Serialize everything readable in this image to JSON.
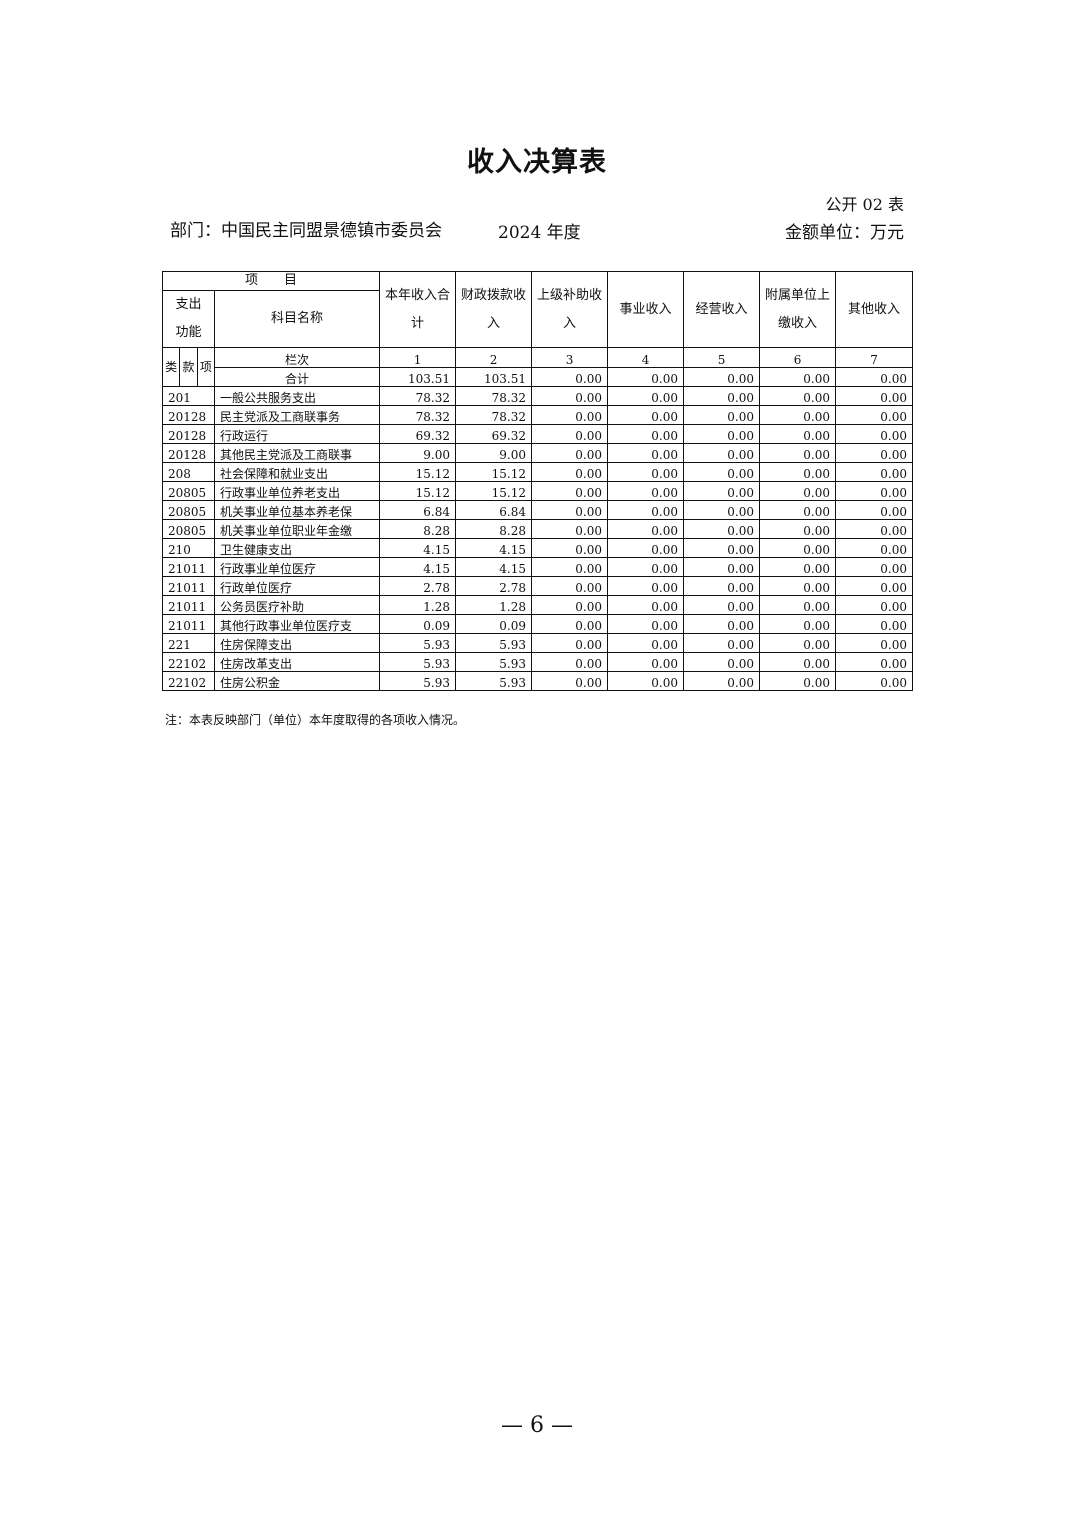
{
  "title": "收入决算表",
  "form_code": "公开 02 表",
  "department": "部门：中国民主同盟景德镇市委员会",
  "year": "2024 年度",
  "unit": "金额单位：万元",
  "table": {
    "header": {
      "item": "项　　目",
      "function_class": "支出功能",
      "subject_name": "科目名称",
      "sub_levels": [
        "类",
        "款",
        "项"
      ],
      "columns": [
        "本年收入合计",
        "财政拨款收入",
        "上级补助收入",
        "事业收入",
        "经营收入",
        "附属单位上缴收入",
        "其他收入"
      ],
      "column_row_label": "栏次",
      "column_numbers": [
        "1",
        "2",
        "3",
        "4",
        "5",
        "6",
        "7"
      ]
    },
    "total": {
      "label": "合计",
      "values": [
        "103.51",
        "103.51",
        "0.00",
        "0.00",
        "0.00",
        "0.00",
        "0.00"
      ]
    },
    "rows": [
      {
        "code": "201",
        "name": "一般公共服务支出",
        "values": [
          "78.32",
          "78.32",
          "0.00",
          "0.00",
          "0.00",
          "0.00",
          "0.00"
        ]
      },
      {
        "code": "20128",
        "name": "民主党派及工商联事务",
        "values": [
          "78.32",
          "78.32",
          "0.00",
          "0.00",
          "0.00",
          "0.00",
          "0.00"
        ]
      },
      {
        "code": "20128",
        "name": "行政运行",
        "values": [
          "69.32",
          "69.32",
          "0.00",
          "0.00",
          "0.00",
          "0.00",
          "0.00"
        ]
      },
      {
        "code": "20128",
        "name": "其他民主党派及工商联事",
        "values": [
          "9.00",
          "9.00",
          "0.00",
          "0.00",
          "0.00",
          "0.00",
          "0.00"
        ]
      },
      {
        "code": "208",
        "name": "社会保障和就业支出",
        "values": [
          "15.12",
          "15.12",
          "0.00",
          "0.00",
          "0.00",
          "0.00",
          "0.00"
        ]
      },
      {
        "code": "20805",
        "name": "行政事业单位养老支出",
        "values": [
          "15.12",
          "15.12",
          "0.00",
          "0.00",
          "0.00",
          "0.00",
          "0.00"
        ]
      },
      {
        "code": "20805",
        "name": "机关事业单位基本养老保",
        "values": [
          "6.84",
          "6.84",
          "0.00",
          "0.00",
          "0.00",
          "0.00",
          "0.00"
        ]
      },
      {
        "code": "20805",
        "name": "机关事业单位职业年金缴",
        "values": [
          "8.28",
          "8.28",
          "0.00",
          "0.00",
          "0.00",
          "0.00",
          "0.00"
        ]
      },
      {
        "code": "210",
        "name": "卫生健康支出",
        "values": [
          "4.15",
          "4.15",
          "0.00",
          "0.00",
          "0.00",
          "0.00",
          "0.00"
        ]
      },
      {
        "code": "21011",
        "name": "行政事业单位医疗",
        "values": [
          "4.15",
          "4.15",
          "0.00",
          "0.00",
          "0.00",
          "0.00",
          "0.00"
        ]
      },
      {
        "code": "21011",
        "name": "行政单位医疗",
        "values": [
          "2.78",
          "2.78",
          "0.00",
          "0.00",
          "0.00",
          "0.00",
          "0.00"
        ]
      },
      {
        "code": "21011",
        "name": "公务员医疗补助",
        "values": [
          "1.28",
          "1.28",
          "0.00",
          "0.00",
          "0.00",
          "0.00",
          "0.00"
        ]
      },
      {
        "code": "21011",
        "name": "其他行政事业单位医疗支",
        "values": [
          "0.09",
          "0.09",
          "0.00",
          "0.00",
          "0.00",
          "0.00",
          "0.00"
        ]
      },
      {
        "code": "221",
        "name": "住房保障支出",
        "values": [
          "5.93",
          "5.93",
          "0.00",
          "0.00",
          "0.00",
          "0.00",
          "0.00"
        ]
      },
      {
        "code": "22102",
        "name": "住房改革支出",
        "values": [
          "5.93",
          "5.93",
          "0.00",
          "0.00",
          "0.00",
          "0.00",
          "0.00"
        ]
      },
      {
        "code": "22102",
        "name": "住房公积金",
        "values": [
          "5.93",
          "5.93",
          "0.00",
          "0.00",
          "0.00",
          "0.00",
          "0.00"
        ]
      }
    ]
  },
  "note": "注：本表反映部门（单位）本年度取得的各项收入情况。",
  "page_number": "— 6 —"
}
